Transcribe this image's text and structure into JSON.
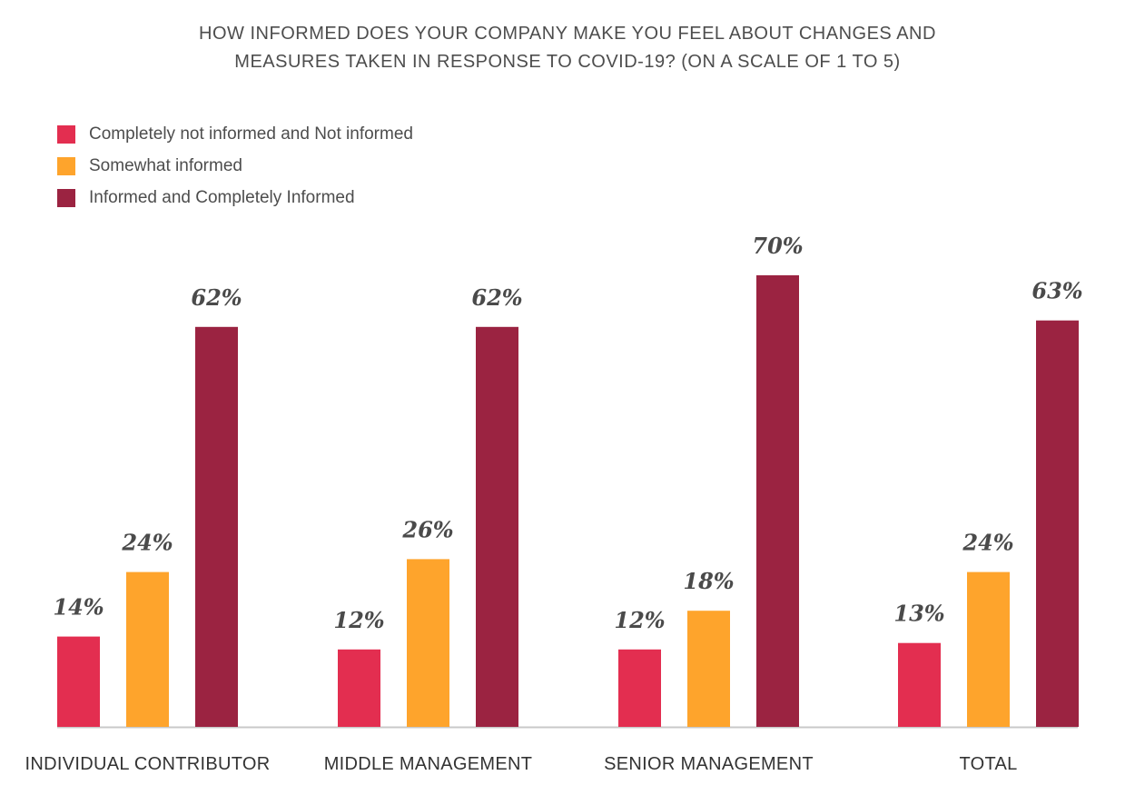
{
  "chart_data": {
    "type": "bar",
    "title_lines": [
      "HOW INFORMED DOES YOUR COMPANY MAKE YOU FEEL ABOUT CHANGES AND",
      "MEASURES TAKEN IN RESPONSE TO COVID-19? (ON A SCALE OF 1 TO 5)"
    ],
    "categories": [
      "INDIVIDUAL CONTRIBUTOR",
      "MIDDLE MANAGEMENT",
      "SENIOR MANAGEMENT",
      "TOTAL"
    ],
    "series": [
      {
        "name": "Completely not informed and Not informed",
        "color": "#e32e50",
        "values": [
          14,
          12,
          12,
          13
        ],
        "labels": [
          "14%",
          "12%",
          "12%",
          "13%"
        ]
      },
      {
        "name": "Somewhat informed",
        "color": "#fea42c",
        "values": [
          24,
          26,
          18,
          24
        ],
        "labels": [
          "24%",
          "26%",
          "18%",
          "24%"
        ]
      },
      {
        "name": "Informed and Completely Informed",
        "color": "#9b2341",
        "values": [
          62,
          62,
          70,
          63
        ],
        "labels": [
          "62%",
          "62%",
          "70%",
          "63%"
        ]
      }
    ],
    "ylim": [
      0,
      70
    ],
    "grid": false,
    "legend_position": "top-left",
    "axis_color": "#c8c8c8"
  }
}
